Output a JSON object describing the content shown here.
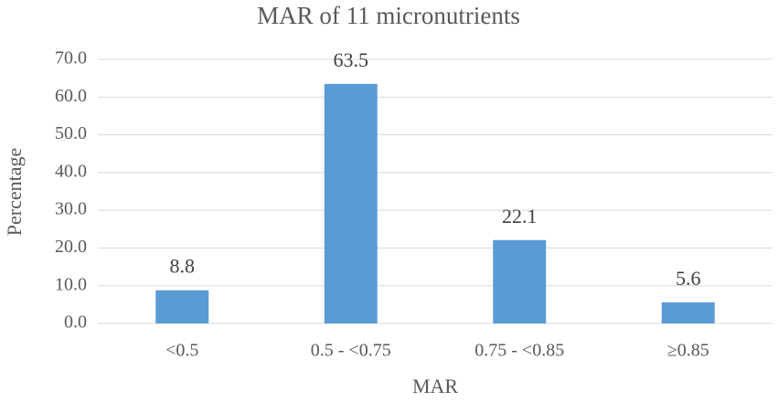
{
  "chart_data": {
    "type": "bar",
    "title": "MAR of 11 micronutrients",
    "x_label": "MAR",
    "y_label": "Percentage",
    "categories": [
      "<0.5",
      "0.5 - <0.75",
      "0.75 - <0.85",
      "≥0.85"
    ],
    "values": [
      8.8,
      63.5,
      22.1,
      5.6
    ],
    "color": "#5b9bd5",
    "ylim": [
      0,
      70
    ],
    "yticks": [
      {
        "value": 0,
        "label": "0.0"
      },
      {
        "value": 10,
        "label": "10.0"
      },
      {
        "value": 20,
        "label": "20.0"
      },
      {
        "value": 30,
        "label": "30.0"
      },
      {
        "value": 40,
        "label": "40.0"
      },
      {
        "value": 50,
        "label": "50.0"
      },
      {
        "value": 60,
        "label": "60.0"
      },
      {
        "value": 70,
        "label": "70.0"
      }
    ],
    "grid": true,
    "data_labels": true
  }
}
